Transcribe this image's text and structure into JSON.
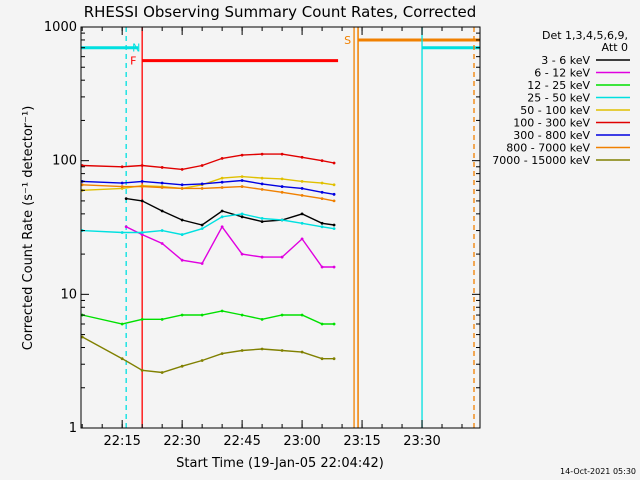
{
  "chart_data": {
    "type": "line",
    "title": "RHESSI Observing Summary Count Rates, Corrected",
    "xlabel": "Start Time (19-Jan-05 22:04:42)",
    "ylabel": "Corrected Count Rate (s⁻¹ detector⁻¹)",
    "yscale": "log",
    "ylim": [
      1,
      1000
    ],
    "xlim": [
      "22:04:42",
      "23:44:30"
    ],
    "x_ticks": [
      "22:15",
      "22:30",
      "22:45",
      "23:00",
      "23:15",
      "23:30"
    ],
    "y_ticks": [
      "1",
      "10",
      "100",
      "1000"
    ],
    "legend_title": "Det 1,3,4,5,6,9,",
    "legend_subtitle": "Att 0",
    "legend_placement": "right",
    "timestamp": "14-Oct-2021 05:30",
    "series": [
      {
        "name": "3 - 6 keV",
        "color": "#000000",
        "x": [
          "22:16",
          "22:20",
          "22:25",
          "22:30",
          "22:35",
          "22:40",
          "22:45",
          "22:50",
          "22:55",
          "23:00",
          "23:05",
          "23:08"
        ],
        "values": [
          52,
          50,
          42,
          36,
          33,
          42,
          38,
          35,
          36,
          40,
          34,
          33
        ]
      },
      {
        "name": "6 - 12 keV",
        "color": "#e000e0",
        "x": [
          "22:16",
          "22:20",
          "22:25",
          "22:30",
          "22:35",
          "22:40",
          "22:45",
          "22:50",
          "22:55",
          "23:00",
          "23:05",
          "23:08"
        ],
        "values": [
          32,
          28,
          24,
          18,
          17,
          32,
          20,
          19,
          19,
          26,
          16,
          16
        ]
      },
      {
        "name": "12 - 25 keV",
        "color": "#00e000",
        "x": [
          "22:05",
          "22:15",
          "22:20",
          "22:25",
          "22:30",
          "22:35",
          "22:40",
          "22:45",
          "22:50",
          "22:55",
          "23:00",
          "23:05",
          "23:08"
        ],
        "values": [
          7,
          6,
          6.5,
          6.5,
          7,
          7,
          7.5,
          7,
          6.5,
          7,
          7,
          6,
          6
        ]
      },
      {
        "name": "25 - 50 keV",
        "color": "#00e0e0",
        "x": [
          "22:05",
          "22:15",
          "22:20",
          "22:25",
          "22:30",
          "22:35",
          "22:40",
          "22:45",
          "22:50",
          "22:55",
          "23:00",
          "23:05",
          "23:08"
        ],
        "values": [
          30,
          29,
          29,
          30,
          28,
          31,
          38,
          40,
          37,
          36,
          34,
          32,
          31
        ]
      },
      {
        "name": "50 - 100 keV",
        "color": "#e0c000",
        "x": [
          "22:05",
          "22:15",
          "22:20",
          "22:25",
          "22:30",
          "22:35",
          "22:40",
          "22:45",
          "22:50",
          "22:55",
          "23:00",
          "23:05",
          "23:08"
        ],
        "values": [
          60,
          62,
          65,
          64,
          62,
          66,
          74,
          76,
          74,
          73,
          70,
          68,
          66
        ]
      },
      {
        "name": "100 - 300 keV",
        "color": "#e00000",
        "x": [
          "22:05",
          "22:15",
          "22:20",
          "22:25",
          "22:30",
          "22:35",
          "22:40",
          "22:45",
          "22:50",
          "22:55",
          "23:00",
          "23:05",
          "23:08"
        ],
        "values": [
          92,
          90,
          92,
          89,
          86,
          92,
          104,
          110,
          112,
          112,
          106,
          100,
          96
        ]
      },
      {
        "name": "300 - 800 keV",
        "color": "#0000e0",
        "x": [
          "22:05",
          "22:15",
          "22:20",
          "22:25",
          "22:30",
          "22:35",
          "22:40",
          "22:45",
          "22:50",
          "22:55",
          "23:00",
          "23:05",
          "23:08"
        ],
        "values": [
          70,
          68,
          70,
          68,
          66,
          67,
          69,
          71,
          67,
          64,
          62,
          58,
          56
        ]
      },
      {
        "name": "800 - 7000 keV",
        "color": "#f08000",
        "x": [
          "22:05",
          "22:15",
          "22:20",
          "22:25",
          "22:30",
          "22:35",
          "22:40",
          "22:45",
          "22:50",
          "22:55",
          "23:00",
          "23:05",
          "23:08"
        ],
        "values": [
          66,
          64,
          64,
          63,
          62,
          62,
          63,
          64,
          61,
          58,
          55,
          52,
          50
        ]
      },
      {
        "name": "7000 - 15000 keV",
        "color": "#808000",
        "x": [
          "22:05",
          "22:15",
          "22:20",
          "22:25",
          "22:30",
          "22:35",
          "22:40",
          "22:45",
          "22:50",
          "22:55",
          "23:00",
          "23:05",
          "23:08"
        ],
        "values": [
          4.8,
          3.3,
          2.7,
          2.6,
          2.9,
          3.2,
          3.6,
          3.8,
          3.9,
          3.8,
          3.7,
          3.3,
          3.3
        ]
      }
    ],
    "markers": [
      {
        "label": "N",
        "color": "#00e0e0",
        "x": "22:16"
      },
      {
        "label": "F",
        "color": "#ff0000",
        "x": "22:20"
      },
      {
        "label": "S",
        "color": "#f08000",
        "x": "23:13"
      }
    ],
    "flag_bars": [
      {
        "color": "#00e0e0",
        "level": 700,
        "x_start": "22:04:42",
        "x_end": "22:19"
      },
      {
        "color": "#ff0000",
        "level": 560,
        "x_start": "22:20",
        "x_end": "23:09"
      },
      {
        "color": "#f08000",
        "level": 800,
        "x_start": "23:14",
        "x_end": "23:44:30"
      },
      {
        "color": "#00e0e0",
        "level": 700,
        "x_start": "23:30",
        "x_end": "23:44:30"
      }
    ],
    "grid": false
  }
}
